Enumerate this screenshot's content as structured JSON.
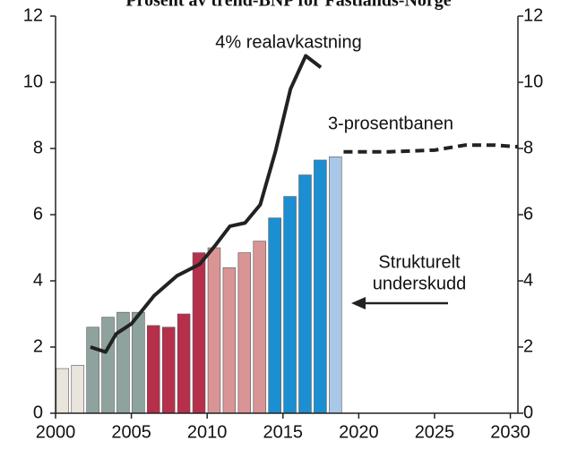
{
  "chart_data": {
    "type": "bar",
    "title": "Prosent av trend-BNP for Fastlands-Norge",
    "xlim": [
      2000,
      2030.5
    ],
    "xticks": [
      2000,
      2005,
      2010,
      2015,
      2020,
      2025,
      2030
    ],
    "ylim": [
      0,
      12
    ],
    "yticks": [
      0,
      2,
      4,
      6,
      8,
      10,
      12
    ],
    "y2lim": [
      0,
      12
    ],
    "y2ticks": [
      0,
      2,
      4,
      6,
      8,
      10,
      12
    ],
    "series": [
      {
        "type": "bar",
        "x": [
          2000,
          2001,
          2002,
          2003,
          2004,
          2005,
          2006,
          2007,
          2008,
          2009,
          2010,
          2011,
          2012,
          2013,
          2014,
          2015,
          2016,
          2017,
          2018
        ],
        "values": [
          1.35,
          1.45,
          2.6,
          2.9,
          3.05,
          3.05,
          2.65,
          2.6,
          3.0,
          4.85,
          5.0,
          4.4,
          4.85,
          5.2,
          5.9,
          6.55,
          7.2,
          7.65,
          7.75
        ],
        "colors": [
          "#e9e5dd",
          "#e9e5dd",
          "#8fa39e",
          "#8fa39e",
          "#8fa39e",
          "#8fa39e",
          "#b7304b",
          "#b7304b",
          "#b7304b",
          "#b7304b",
          "#d99595",
          "#d99595",
          "#d99595",
          "#d99595",
          "#1b8fd2",
          "#1b8fd2",
          "#1b8fd2",
          "#1b8fd2",
          "#a9c8e8"
        ]
      },
      {
        "type": "line",
        "name": "4% realavkastning",
        "color": "#222222",
        "dashed": false,
        "x": [
          2002.3,
          2003.3,
          2004,
          2005,
          2006.5,
          2008,
          2009.5,
          2010.5,
          2011.5,
          2012.5,
          2013.5,
          2014.5,
          2015.5,
          2016.5,
          2017.5
        ],
        "values": [
          2.0,
          1.85,
          2.4,
          2.7,
          3.55,
          4.15,
          4.5,
          5.05,
          5.65,
          5.75,
          6.3,
          7.9,
          9.8,
          10.8,
          10.45
        ]
      },
      {
        "type": "line",
        "name": "3-prosentbanen",
        "color": "#222222",
        "dashed": true,
        "x": [
          2019,
          2022,
          2025,
          2027,
          2029,
          2030.5
        ],
        "values": [
          7.9,
          7.9,
          7.95,
          8.1,
          8.1,
          8.05
        ]
      }
    ],
    "annotations": [
      "Strukturelt",
      "underskudd"
    ]
  }
}
